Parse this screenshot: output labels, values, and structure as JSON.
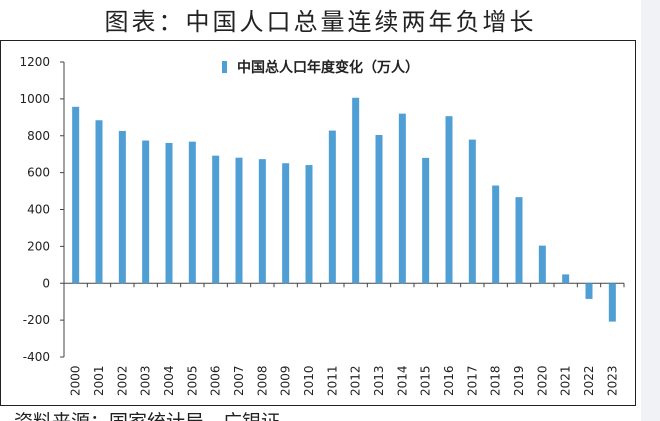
{
  "page_title": "图表：中国人口总量连续两年负增长",
  "source_note": "资料来源：国家统计局，广银证",
  "chart_data": {
    "type": "bar",
    "title": "",
    "xlabel": "",
    "ylabel": "",
    "ylim": [
      -400,
      1200
    ],
    "yticks": [
      -400,
      -200,
      0,
      200,
      400,
      600,
      800,
      1000,
      1200
    ],
    "grid": false,
    "legend_position": "top",
    "bar_color": "#4f9ed4",
    "categories": [
      "2000",
      "2001",
      "2002",
      "2003",
      "2004",
      "2005",
      "2006",
      "2007",
      "2008",
      "2009",
      "2010",
      "2011",
      "2012",
      "2013",
      "2014",
      "2015",
      "2016",
      "2017",
      "2018",
      "2019",
      "2020",
      "2021",
      "2022",
      "2023"
    ],
    "series": [
      {
        "name": "中国总人口年度变化（万人）",
        "values": [
          957,
          884,
          826,
          774,
          761,
          768,
          692,
          681,
          673,
          651,
          641,
          828,
          1006,
          804,
          920,
          680,
          906,
          779,
          530,
          467,
          204,
          48,
          -85,
          -208
        ]
      }
    ]
  }
}
